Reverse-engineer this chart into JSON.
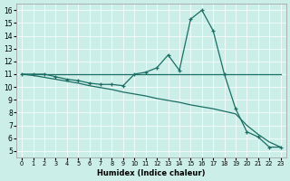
{
  "xlabel": "Humidex (Indice chaleur)",
  "bg_color": "#cceee8",
  "line_color": "#1a6e64",
  "xlim": [
    -0.5,
    23.5
  ],
  "ylim": [
    4.5,
    16.5
  ],
  "xticks": [
    0,
    1,
    2,
    3,
    4,
    5,
    6,
    7,
    8,
    9,
    10,
    11,
    12,
    13,
    14,
    15,
    16,
    17,
    18,
    19,
    20,
    21,
    22,
    23
  ],
  "yticks": [
    5,
    6,
    7,
    8,
    9,
    10,
    11,
    12,
    13,
    14,
    15,
    16
  ],
  "line1_x": [
    0,
    1,
    2,
    3,
    4,
    5,
    6,
    7,
    8,
    9,
    10,
    11,
    12,
    13,
    14,
    15,
    16,
    17,
    18,
    19,
    20,
    21,
    22,
    23
  ],
  "line1_y": [
    11,
    11,
    11,
    11,
    11,
    11,
    11,
    11,
    11,
    11,
    11,
    11,
    11,
    11,
    11,
    11,
    11,
    11,
    11,
    11,
    11,
    11,
    11,
    11
  ],
  "line2_x": [
    0,
    1,
    2,
    3,
    4,
    5,
    6,
    7,
    8,
    9,
    10,
    11,
    12,
    13,
    14,
    15,
    16,
    17,
    18,
    19,
    20,
    21,
    22,
    23
  ],
  "line2_y": [
    11,
    11,
    11,
    10.8,
    10.6,
    10.5,
    10.3,
    10.2,
    10.2,
    10.1,
    11.0,
    11.15,
    11.5,
    12.5,
    11.3,
    15.3,
    16.0,
    14.4,
    11.0,
    8.3,
    6.5,
    6.1,
    5.3,
    5.3
  ],
  "line3_x": [
    0,
    1,
    2,
    3,
    4,
    5,
    6,
    7,
    8,
    9,
    10,
    11,
    12,
    13,
    14,
    15,
    16,
    17,
    18,
    19,
    20,
    21,
    22,
    23
  ],
  "line3_y": [
    11,
    10.9,
    10.75,
    10.6,
    10.45,
    10.3,
    10.1,
    9.95,
    9.8,
    9.6,
    9.45,
    9.3,
    9.1,
    8.95,
    8.8,
    8.6,
    8.45,
    8.3,
    8.1,
    7.9,
    7.0,
    6.3,
    5.7,
    5.3
  ]
}
